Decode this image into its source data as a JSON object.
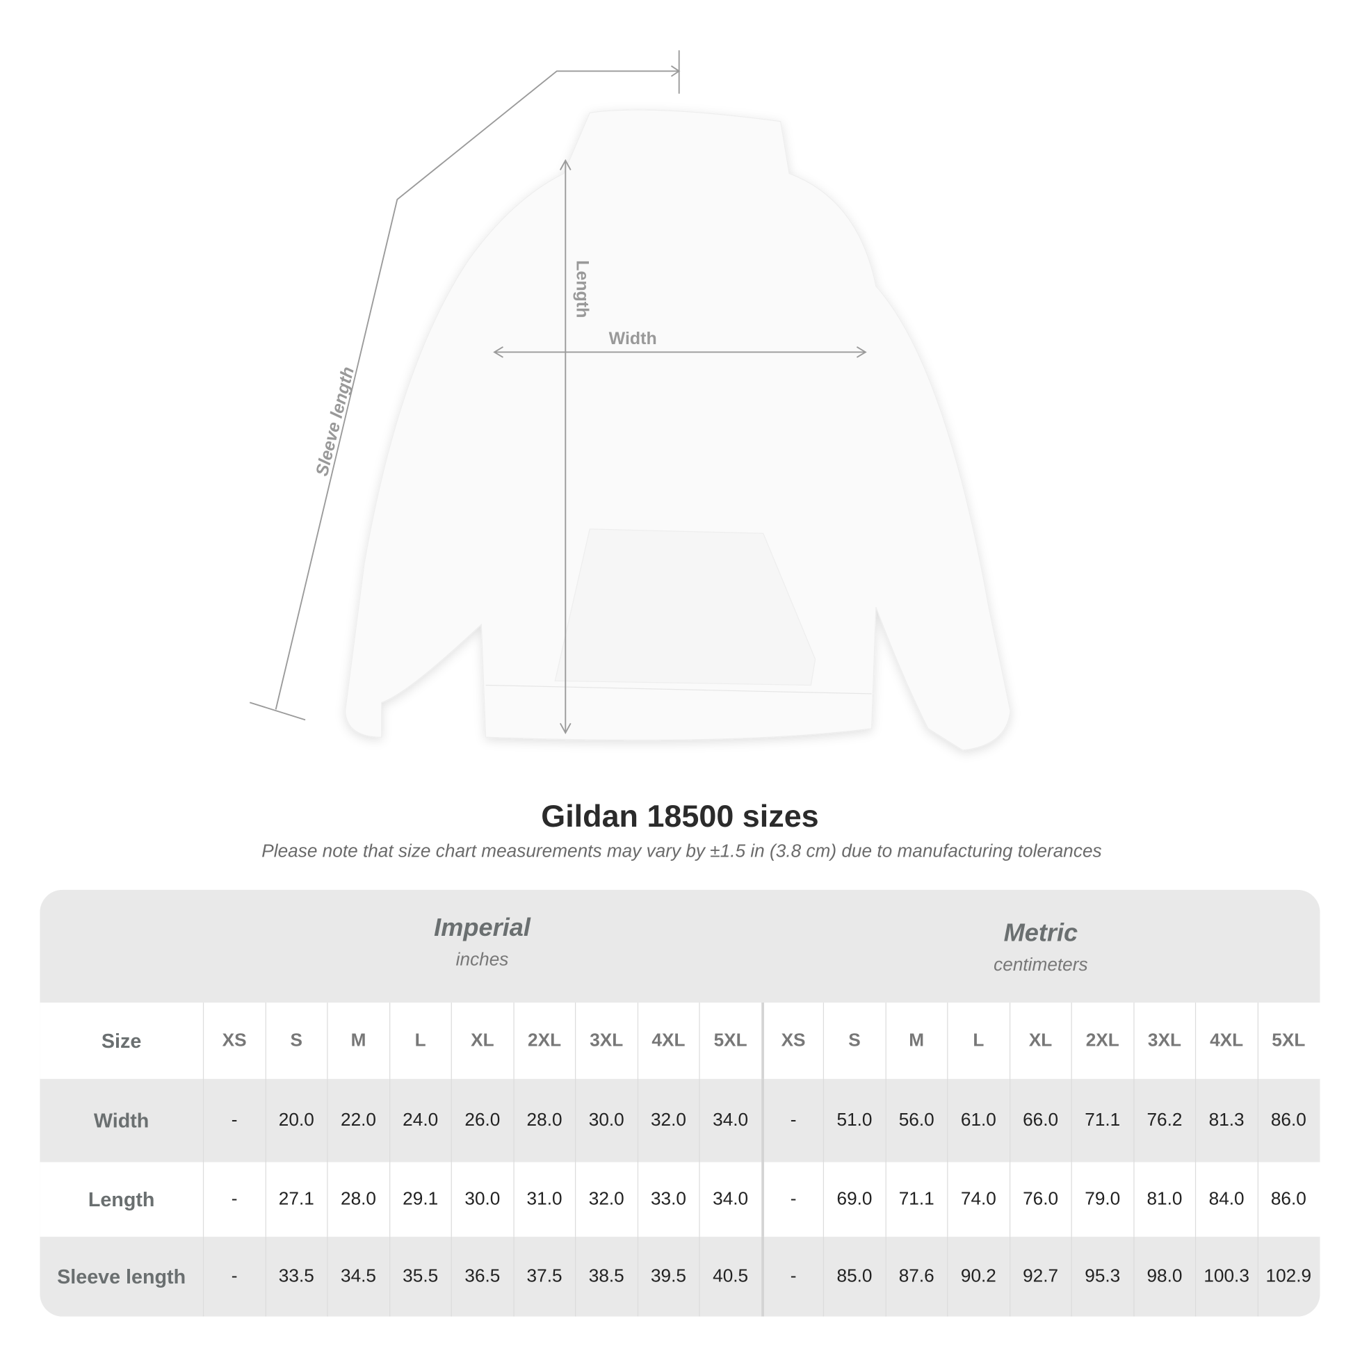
{
  "diagram": {
    "labels": {
      "sleeve": "Sleeve length",
      "length": "Length",
      "width": "Width"
    }
  },
  "title": "Gildan 18500 sizes",
  "note": "Please note that size chart measurements may vary by ±1.5 in (3.8 cm) due to manufacturing tolerances",
  "table": {
    "imperial": {
      "name": "Imperial",
      "unit": "inches"
    },
    "metric": {
      "name": "Metric",
      "unit": "centimeters"
    },
    "size_label": "Size",
    "sizes": [
      "XS",
      "S",
      "M",
      "L",
      "XL",
      "2XL",
      "3XL",
      "4XL",
      "5XL"
    ],
    "rows": [
      {
        "label": "Width",
        "imperial": [
          "-",
          "20.0",
          "22.0",
          "24.0",
          "26.0",
          "28.0",
          "30.0",
          "32.0",
          "34.0"
        ],
        "metric": [
          "-",
          "51.0",
          "56.0",
          "61.0",
          "66.0",
          "71.1",
          "76.2",
          "81.3",
          "86.0"
        ]
      },
      {
        "label": "Length",
        "imperial": [
          "-",
          "27.1",
          "28.0",
          "29.1",
          "30.0",
          "31.0",
          "32.0",
          "33.0",
          "34.0"
        ],
        "metric": [
          "-",
          "69.0",
          "71.1",
          "74.0",
          "76.0",
          "79.0",
          "81.0",
          "84.0",
          "86.0"
        ]
      },
      {
        "label": "Sleeve length",
        "imperial": [
          "-",
          "33.5",
          "34.5",
          "35.5",
          "36.5",
          "37.5",
          "38.5",
          "39.5",
          "40.5"
        ],
        "metric": [
          "-",
          "85.0",
          "87.6",
          "90.2",
          "92.7",
          "95.3",
          "98.0",
          "100.3",
          "102.9"
        ]
      }
    ]
  }
}
